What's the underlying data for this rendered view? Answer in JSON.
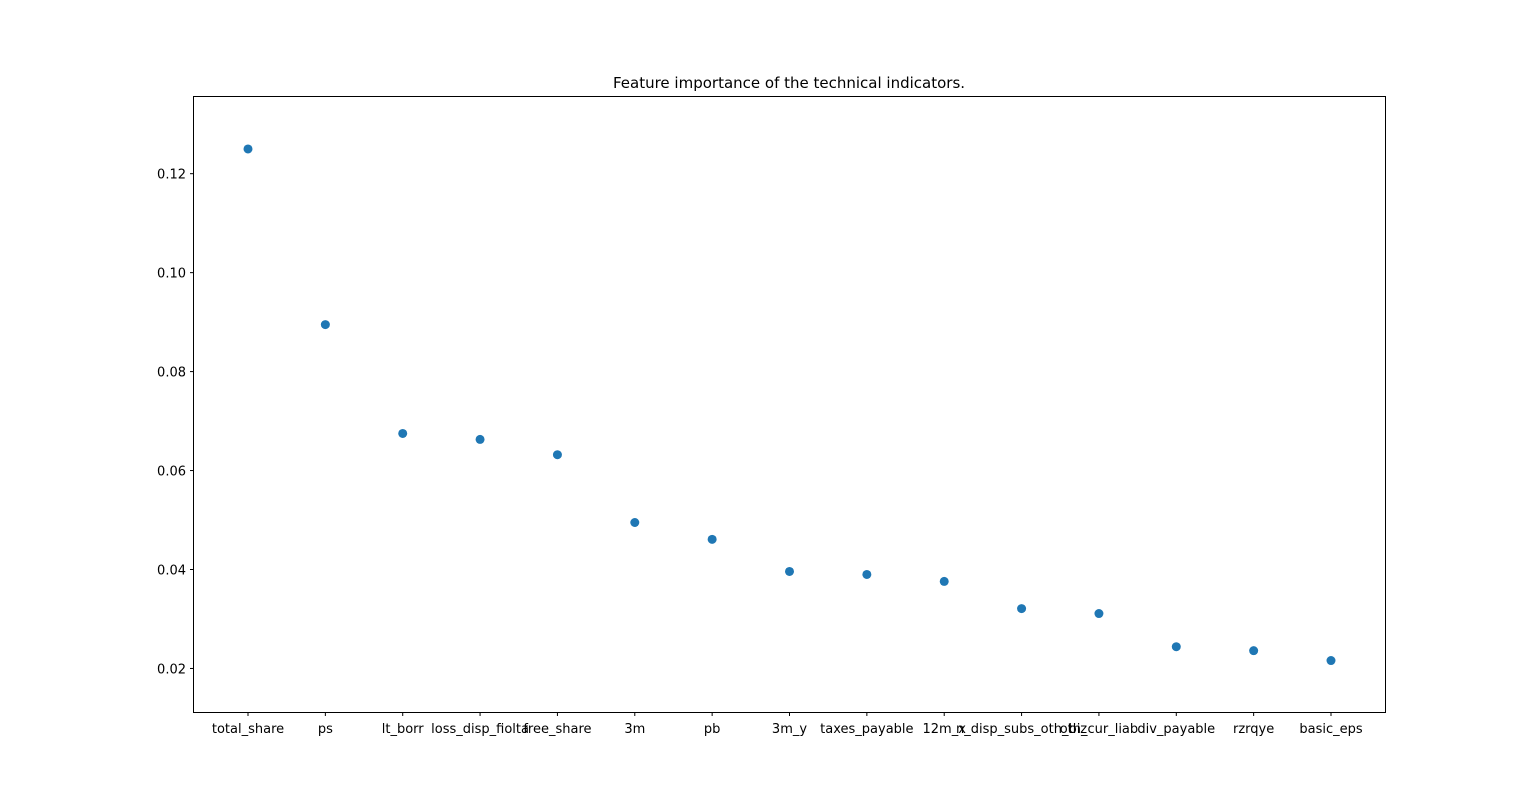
{
  "chart_data": {
    "type": "scatter",
    "title": "Feature importance of the technical indicators.",
    "xlabel": "",
    "ylabel": "",
    "categories": [
      "total_share",
      "ps",
      "lt_borr",
      "loss_disp_fiolta",
      "free_share",
      "3m",
      "pb",
      "3m_y",
      "taxes_payable",
      "12m_x",
      "n_disp_subs_oth_biz",
      "oth_cur_liab",
      "div_payable",
      "rzrqye",
      "basic_eps"
    ],
    "series": [
      {
        "values": [
          0.125,
          0.0895,
          0.0675,
          0.0663,
          0.0632,
          0.0495,
          0.0461,
          0.0396,
          0.039,
          0.0376,
          0.0321,
          0.0311,
          0.0244,
          0.0236,
          0.0216
        ]
      }
    ],
    "ylim": [
      0.0112,
      0.1355
    ],
    "yticks": [
      "0.02",
      "0.04",
      "0.06",
      "0.08",
      "0.10",
      "0.12"
    ],
    "grid": false,
    "marker_color": "#1f77b4"
  }
}
